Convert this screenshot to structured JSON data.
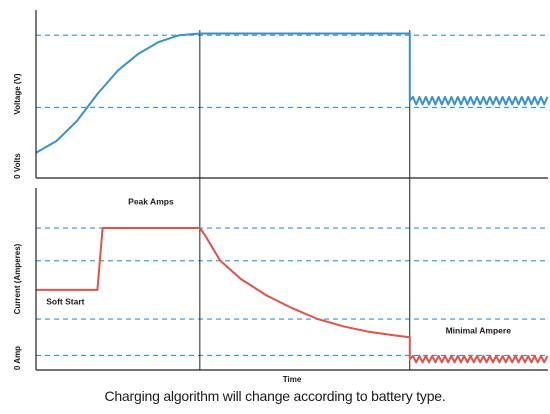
{
  "chart_data": {
    "type": "line",
    "title": "",
    "caption": "Charging algorithm will change according to battery type.",
    "xlabel": "Time",
    "grid": true,
    "phase_dividers": [
      0.32,
      0.73
    ],
    "colors": {
      "voltage": "#3a92c8",
      "current": "#e0524a",
      "grid": "#3a92c8",
      "axis": "#222222"
    },
    "panels": [
      {
        "id": "voltage",
        "ylabel": "Voltage (V)",
        "baseline_label": "0 Volts",
        "guide_levels": [
          0.85,
          0.42
        ],
        "series": [
          {
            "color": "#3a92c8",
            "x": [
              0,
              0.04,
              0.08,
              0.12,
              0.16,
              0.2,
              0.24,
              0.28,
              0.32,
              0.5,
              0.73
            ],
            "y": [
              0.15,
              0.22,
              0.34,
              0.5,
              0.64,
              0.74,
              0.81,
              0.85,
              0.86,
              0.86,
              0.86
            ],
            "tail": {
              "x": [
                0.73,
                1.0
              ],
              "level": 0.46,
              "ripple": 0.045
            }
          }
        ]
      },
      {
        "id": "current",
        "ylabel": "Current (Amperes)",
        "baseline_label": "0 Amp",
        "guide_levels": [
          0.78,
          0.6,
          0.28,
          0.08
        ],
        "annotations": [
          {
            "text": "Soft Start",
            "x": 0.02,
            "y": 0.36
          },
          {
            "text": "Peak Amps",
            "x": 0.18,
            "y": 0.91
          },
          {
            "text": "Minimal Ampere",
            "x": 0.8,
            "y": 0.2
          }
        ],
        "series": [
          {
            "color": "#e0524a",
            "x": [
              0,
              0.12,
              0.13,
              0.32,
              0.33,
              0.36,
              0.4,
              0.45,
              0.5,
              0.55,
              0.6,
              0.65,
              0.7,
              0.73
            ],
            "y": [
              0.44,
              0.44,
              0.78,
              0.78,
              0.74,
              0.6,
              0.5,
              0.41,
              0.34,
              0.28,
              0.24,
              0.21,
              0.19,
              0.18
            ],
            "tail": {
              "x": [
                0.73,
                1.0
              ],
              "level": 0.06,
              "ripple": 0.035
            }
          }
        ]
      }
    ]
  }
}
